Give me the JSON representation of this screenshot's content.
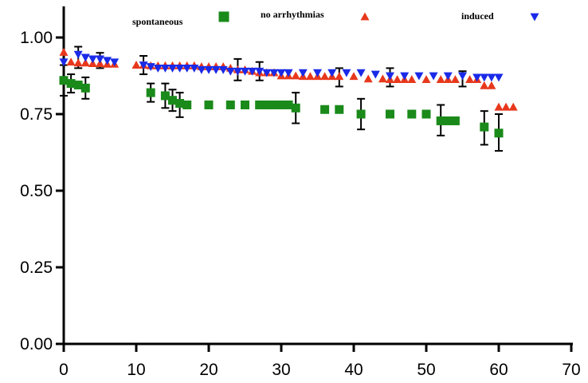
{
  "chart_data": {
    "type": "scatter",
    "title": "",
    "xlabel": "",
    "ylabel": "",
    "xlim": [
      0,
      70
    ],
    "ylim": [
      0,
      1.0
    ],
    "x_ticks": [
      0,
      10,
      20,
      30,
      40,
      50,
      60,
      70
    ],
    "y_ticks": [
      0.0,
      0.25,
      0.5,
      0.75,
      1.0
    ],
    "x_tick_labels": [
      "0",
      "10",
      "20",
      "30",
      "40",
      "50",
      "60",
      "70"
    ],
    "y_tick_labels": [
      "0.00",
      "0.25",
      "0.50",
      "0.75",
      "1.00"
    ],
    "grid": false,
    "legend_position": "top",
    "series": [
      {
        "name": "spontaneous",
        "marker": "square",
        "color": "#1a8a1a",
        "x": [
          0,
          1,
          2,
          3,
          12,
          14,
          15,
          16,
          17,
          20,
          23,
          25,
          27,
          28,
          29,
          30,
          31,
          32,
          36,
          38,
          41,
          45,
          48,
          50,
          52,
          53,
          54,
          58,
          60
        ],
        "y": [
          0.86,
          0.85,
          0.845,
          0.835,
          0.82,
          0.81,
          0.795,
          0.785,
          0.78,
          0.78,
          0.78,
          0.78,
          0.78,
          0.78,
          0.78,
          0.78,
          0.78,
          0.77,
          0.765,
          0.765,
          0.75,
          0.75,
          0.75,
          0.75,
          0.728,
          0.728,
          0.728,
          0.708,
          0.688
        ],
        "errors": [
          {
            "x": 0,
            "low": 0.81,
            "high": 0.91
          },
          {
            "x": 1,
            "low": 0.82,
            "high": 0.88
          },
          {
            "x": 3,
            "low": 0.8,
            "high": 0.87
          },
          {
            "x": 12,
            "low": 0.79,
            "high": 0.85
          },
          {
            "x": 14,
            "low": 0.77,
            "high": 0.85
          },
          {
            "x": 15,
            "low": 0.76,
            "high": 0.83
          },
          {
            "x": 16,
            "low": 0.74,
            "high": 0.82
          },
          {
            "x": 32,
            "low": 0.72,
            "high": 0.82
          },
          {
            "x": 41,
            "low": 0.7,
            "high": 0.8
          },
          {
            "x": 52,
            "low": 0.68,
            "high": 0.78
          },
          {
            "x": 58,
            "low": 0.65,
            "high": 0.76
          },
          {
            "x": 60,
            "low": 0.63,
            "high": 0.75
          }
        ]
      },
      {
        "name": "no arrhythmias",
        "marker": "triangle-up",
        "color": "#e8381c",
        "x": [
          0,
          1,
          2,
          3,
          4,
          5,
          6,
          7,
          10,
          11,
          12,
          13,
          14,
          15,
          16,
          17,
          18,
          19,
          20,
          21,
          22,
          23,
          24,
          25,
          26,
          27,
          28,
          29,
          30,
          31,
          32,
          33,
          34,
          35,
          36,
          37,
          38,
          40,
          42,
          44,
          45,
          46,
          47,
          48,
          50,
          52,
          53,
          54,
          56,
          57,
          58,
          59,
          60,
          61,
          62
        ],
        "y": [
          0.952,
          0.92,
          0.917,
          0.917,
          0.915,
          0.915,
          0.913,
          0.913,
          0.91,
          0.91,
          0.908,
          0.908,
          0.908,
          0.908,
          0.908,
          0.908,
          0.908,
          0.905,
          0.905,
          0.905,
          0.905,
          0.9,
          0.895,
          0.895,
          0.89,
          0.885,
          0.885,
          0.885,
          0.875,
          0.875,
          0.875,
          0.873,
          0.873,
          0.873,
          0.873,
          0.873,
          0.873,
          0.873,
          0.865,
          0.865,
          0.863,
          0.863,
          0.863,
          0.863,
          0.863,
          0.863,
          0.863,
          0.863,
          0.863,
          0.863,
          0.843,
          0.843,
          0.773,
          0.773,
          0.773
        ],
        "errors": [
          {
            "x": 24,
            "low": 0.86,
            "high": 0.93
          },
          {
            "x": 38,
            "low": 0.84,
            "high": 0.9
          }
        ]
      },
      {
        "name": "induced",
        "marker": "triangle-down",
        "color": "#1a2ae8",
        "x": [
          0,
          2,
          3,
          4,
          5,
          6,
          7,
          11,
          12,
          13,
          14,
          15,
          16,
          17,
          18,
          19,
          20,
          21,
          22,
          23,
          24,
          25,
          26,
          27,
          28,
          29,
          30,
          31,
          33,
          35,
          37,
          39,
          41,
          43,
          45,
          47,
          49,
          51,
          53,
          55,
          57,
          58,
          59,
          60
        ],
        "y": [
          0.92,
          0.945,
          0.935,
          0.93,
          0.93,
          0.925,
          0.92,
          0.91,
          0.905,
          0.9,
          0.9,
          0.9,
          0.9,
          0.9,
          0.9,
          0.895,
          0.895,
          0.895,
          0.895,
          0.89,
          0.89,
          0.89,
          0.89,
          0.89,
          0.885,
          0.885,
          0.885,
          0.885,
          0.885,
          0.885,
          0.885,
          0.885,
          0.885,
          0.88,
          0.875,
          0.875,
          0.875,
          0.875,
          0.875,
          0.875,
          0.87,
          0.87,
          0.87,
          0.87
        ],
        "errors": [
          {
            "x": 2,
            "low": 0.9,
            "high": 0.97
          },
          {
            "x": 5,
            "low": 0.9,
            "high": 0.95
          },
          {
            "x": 11,
            "low": 0.88,
            "high": 0.94
          },
          {
            "x": 27,
            "low": 0.86,
            "high": 0.92
          },
          {
            "x": 45,
            "low": 0.84,
            "high": 0.9
          },
          {
            "x": 55,
            "low": 0.84,
            "high": 0.89
          }
        ]
      }
    ]
  },
  "legend": [
    {
      "label": "spontaneous",
      "marker": "square",
      "color": "#1a8a1a"
    },
    {
      "label": "no arrhythmias",
      "marker": "triangle-up",
      "color": "#e8381c"
    },
    {
      "label": "induced",
      "marker": "triangle-down",
      "color": "#1a2ae8"
    }
  ]
}
